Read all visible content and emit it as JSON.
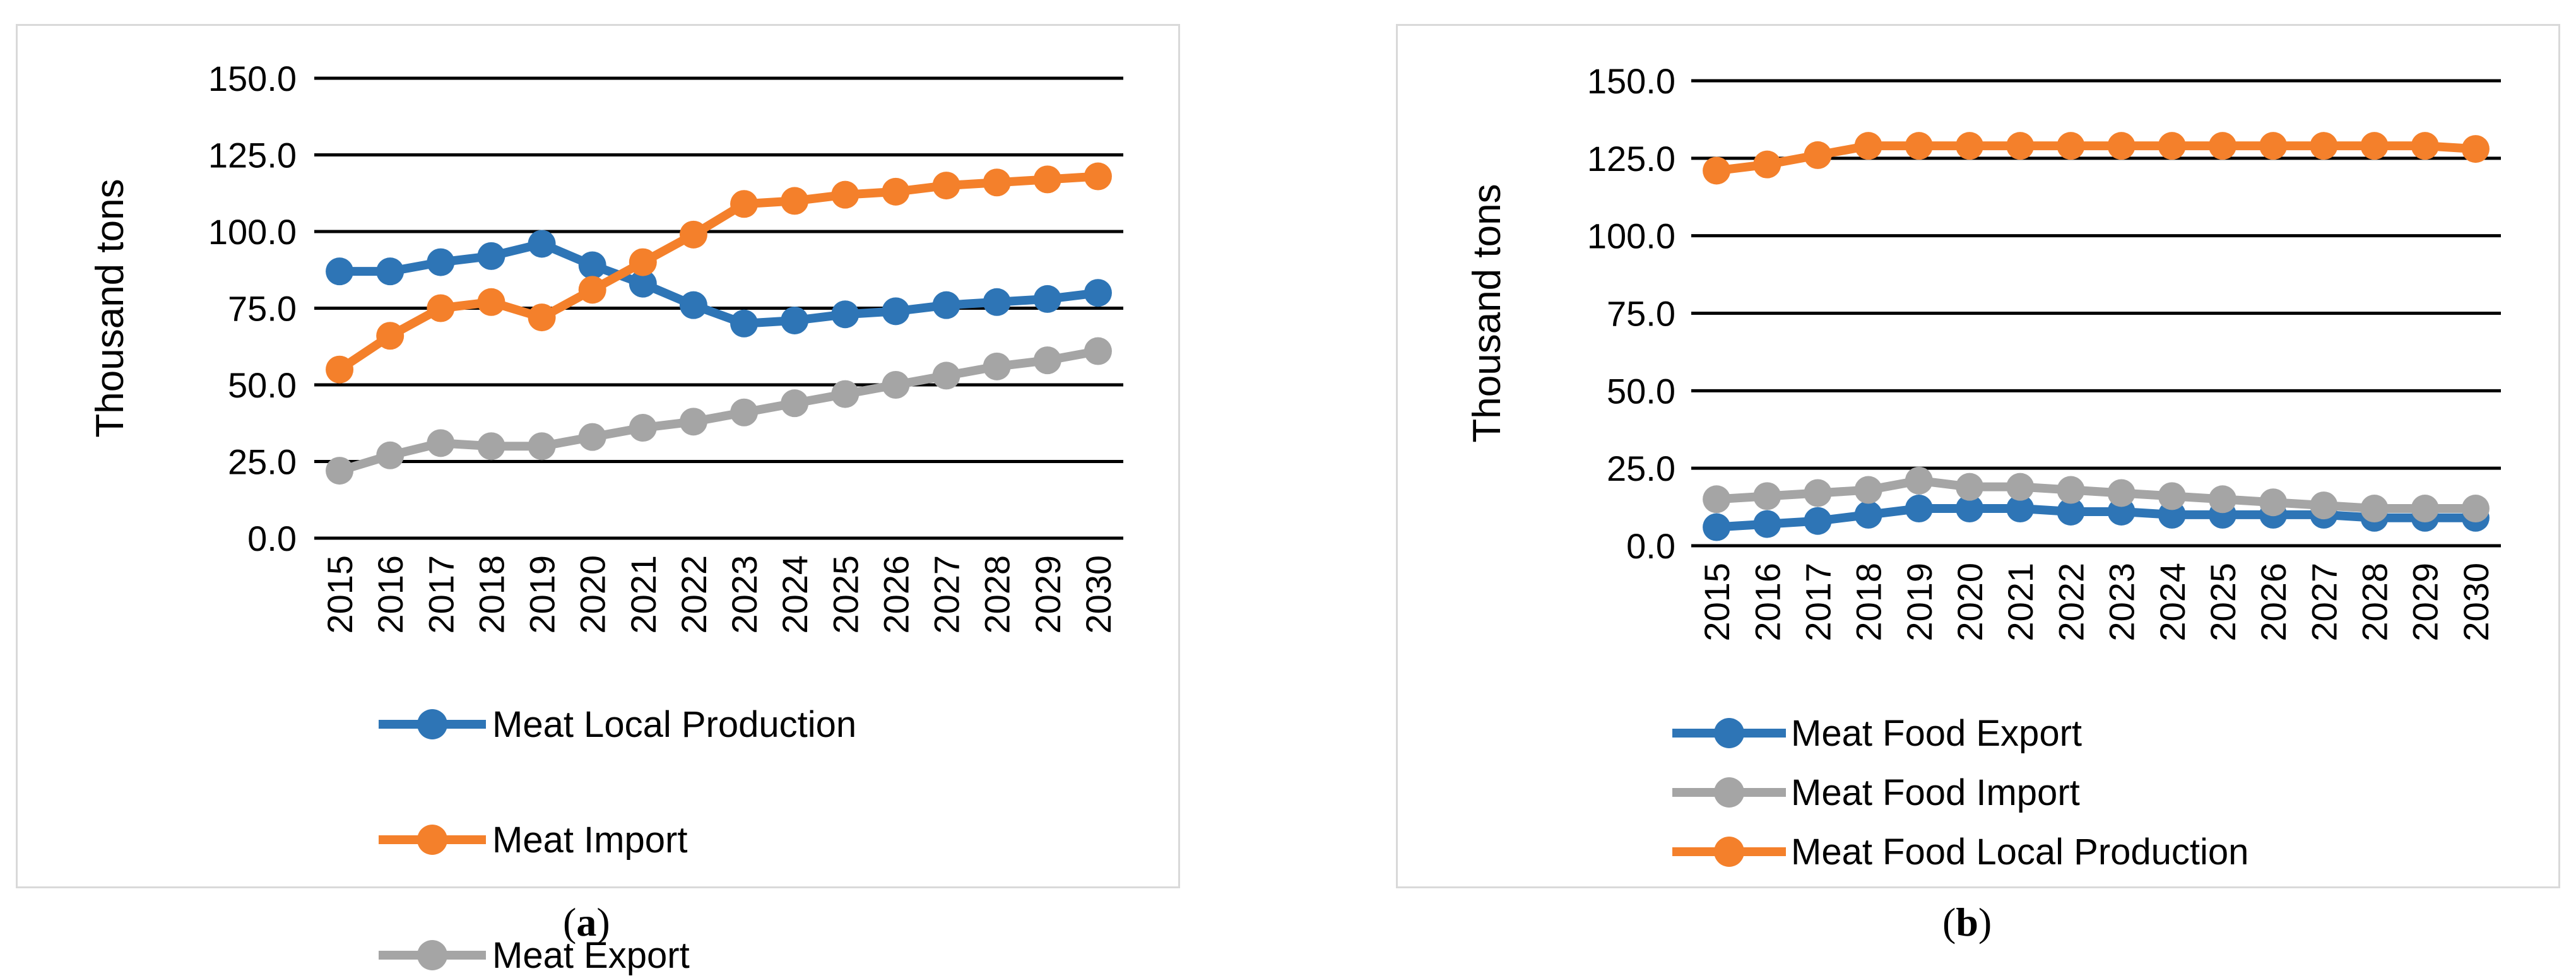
{
  "colors": {
    "blue": "#2e75b6",
    "orange": "#f4802b",
    "gray": "#a5a5a5",
    "grid": "#000000",
    "frame": "#d9d9d9"
  },
  "chart_data": [
    {
      "type": "line",
      "panel": "a",
      "caption_letter": "a",
      "ylabel": "Thousand tons",
      "ylim": [
        0,
        150
      ],
      "yticks": [
        "0.0",
        "25.0",
        "50.0",
        "75.0",
        "100.0",
        "125.0",
        "150.0"
      ],
      "categories": [
        "2015",
        "2016",
        "2017",
        "2018",
        "2019",
        "2020",
        "2021",
        "2022",
        "2023",
        "2024",
        "2025",
        "2026",
        "2027",
        "2028",
        "2029",
        "2030"
      ],
      "legend_position": "bottom",
      "series": [
        {
          "name": "Meat Local Production",
          "color": "#2e75b6",
          "values": [
            87,
            87,
            90,
            92,
            96,
            89,
            83,
            76,
            70,
            71,
            73,
            74,
            76,
            77,
            78,
            80
          ]
        },
        {
          "name": "Meat Import",
          "color": "#f4802b",
          "values": [
            55,
            66,
            75,
            77,
            72,
            81,
            90,
            99,
            109,
            110,
            112,
            113,
            115,
            116,
            117,
            118
          ]
        },
        {
          "name": "Meat Export",
          "color": "#a5a5a5",
          "values": [
            22,
            27,
            31,
            30,
            30,
            33,
            36,
            38,
            41,
            44,
            47,
            50,
            53,
            56,
            58,
            61
          ]
        }
      ]
    },
    {
      "type": "line",
      "panel": "b",
      "caption_letter": "b",
      "ylabel": "Thousand tons",
      "ylim": [
        0,
        150
      ],
      "yticks": [
        "0.0",
        "25.0",
        "50.0",
        "75.0",
        "100.0",
        "125.0",
        "150.0"
      ],
      "categories": [
        "2015",
        "2016",
        "2017",
        "2018",
        "2019",
        "2020",
        "2021",
        "2022",
        "2023",
        "2024",
        "2025",
        "2026",
        "2027",
        "2028",
        "2029",
        "2030"
      ],
      "legend_position": "bottom",
      "series": [
        {
          "name": "Meat Food Export",
          "color": "#2e75b6",
          "values": [
            6,
            7,
            8,
            10,
            12,
            12,
            12,
            11,
            11,
            10,
            10,
            10,
            10,
            9,
            9,
            9
          ]
        },
        {
          "name": "Meat Food Import",
          "color": "#a5a5a5",
          "values": [
            15,
            16,
            17,
            18,
            21,
            19,
            19,
            18,
            17,
            16,
            15,
            14,
            13,
            12,
            12,
            12
          ]
        },
        {
          "name": "Meat Food Local Production",
          "color": "#f4802b",
          "values": [
            121,
            123,
            126,
            129,
            129,
            129,
            129,
            129,
            129,
            129,
            129,
            129,
            129,
            129,
            129,
            128
          ]
        }
      ]
    }
  ]
}
